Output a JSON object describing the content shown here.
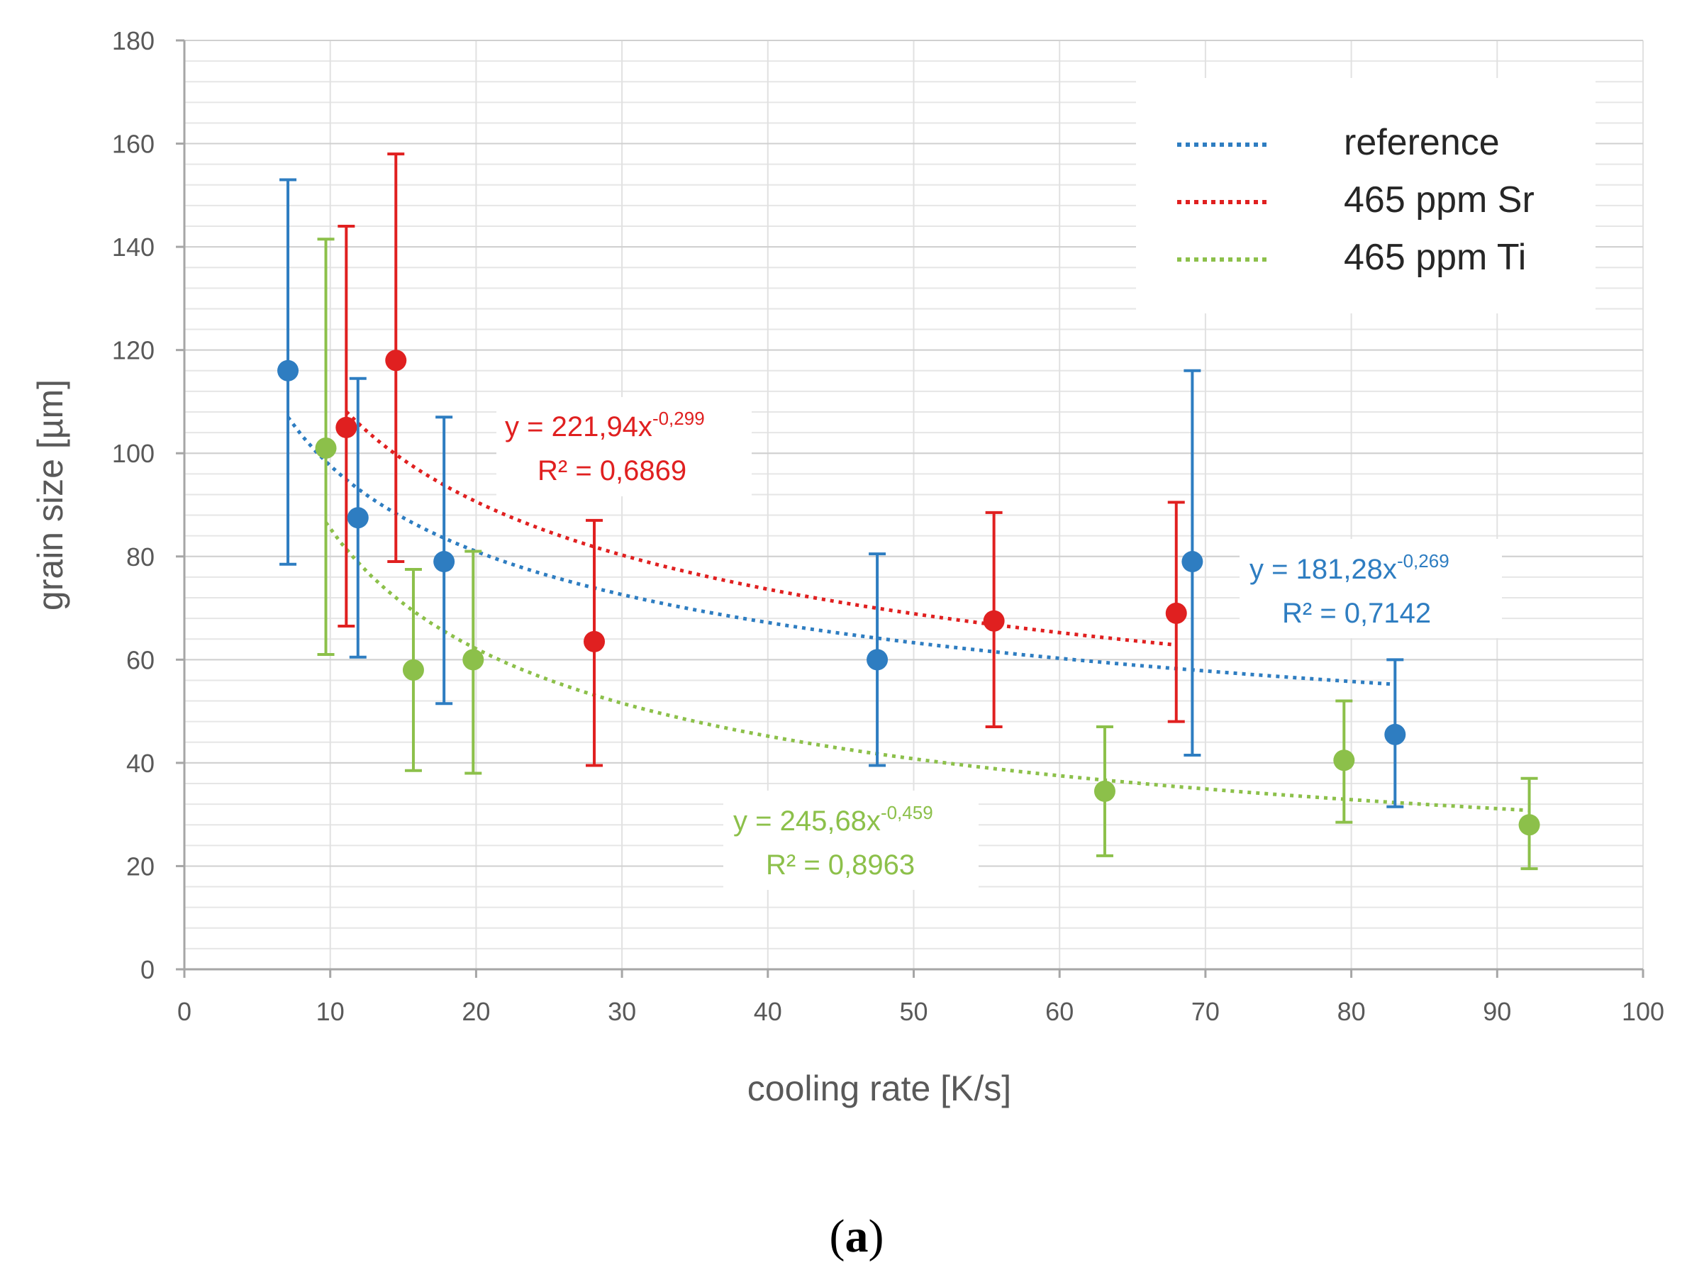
{
  "chart_data": {
    "type": "scatter",
    "xlabel": "cooling rate [K/s]",
    "ylabel": "grain size [µm]",
    "xlim": [
      0,
      100
    ],
    "ylim": [
      0,
      180
    ],
    "x_ticks": [
      "0",
      "10",
      "20",
      "30",
      "40",
      "50",
      "60",
      "70",
      "80",
      "90",
      "100"
    ],
    "y_ticks": [
      "0",
      "20",
      "40",
      "60",
      "80",
      "100",
      "120",
      "140",
      "160",
      "180"
    ],
    "x_tick_values": [
      0,
      10,
      20,
      30,
      40,
      50,
      60,
      70,
      80,
      90,
      100
    ],
    "y_tick_values": [
      0,
      20,
      40,
      60,
      80,
      100,
      120,
      140,
      160,
      180
    ],
    "grid": true,
    "legend_position": "top-right",
    "series": [
      {
        "name": "reference",
        "color": "#2E7DC1",
        "points": [
          {
            "x": 7.1,
            "y": 116,
            "low": 78.5,
            "high": 153
          },
          {
            "x": 11.9,
            "y": 87.5,
            "low": 60.5,
            "high": 114.5
          },
          {
            "x": 17.8,
            "y": 79,
            "low": 51.5,
            "high": 107
          },
          {
            "x": 47.5,
            "y": 60,
            "low": 39.5,
            "high": 80.5
          },
          {
            "x": 69.1,
            "y": 79,
            "low": 41.5,
            "high": 116
          },
          {
            "x": 83,
            "y": 45.5,
            "low": 31.5,
            "high": 60
          }
        ],
        "trend": {
          "a": 181.28,
          "b": -0.269,
          "x_from": 7.1,
          "x_to": 83
        },
        "equation": "y = 181,28x",
        "exponent": "-0,269",
        "r2": "R² = 0,7142"
      },
      {
        "name": "465 ppm Sr",
        "color": "#E02020",
        "points": [
          {
            "x": 11.1,
            "y": 105,
            "low": 66.5,
            "high": 144
          },
          {
            "x": 14.5,
            "y": 118,
            "low": 79,
            "high": 158
          },
          {
            "x": 28.1,
            "y": 63.5,
            "low": 39.5,
            "high": 87
          },
          {
            "x": 55.5,
            "y": 67.5,
            "low": 47,
            "high": 88.5
          },
          {
            "x": 68,
            "y": 69,
            "low": 48,
            "high": 90.5
          }
        ],
        "trend": {
          "a": 221.94,
          "b": -0.299,
          "x_from": 11.1,
          "x_to": 68
        },
        "equation": "y = 221,94x",
        "exponent": "-0,299",
        "r2": "R² = 0,6869"
      },
      {
        "name": "465 ppm Ti",
        "color": "#8CC04A",
        "points": [
          {
            "x": 9.7,
            "y": 101,
            "low": 61,
            "high": 141.5
          },
          {
            "x": 15.7,
            "y": 58,
            "low": 38.5,
            "high": 77.5
          },
          {
            "x": 19.8,
            "y": 60,
            "low": 38,
            "high": 81
          },
          {
            "x": 63.1,
            "y": 34.5,
            "low": 22,
            "high": 47
          },
          {
            "x": 79.5,
            "y": 40.5,
            "low": 28.5,
            "high": 52
          },
          {
            "x": 92.2,
            "y": 28,
            "low": 19.5,
            "high": 37
          }
        ],
        "trend": {
          "a": 245.68,
          "b": -0.459,
          "x_from": 9.7,
          "x_to": 92.2
        },
        "equation": "y = 245,68x",
        "exponent": "-0,459",
        "r2": "R² = 0,8963"
      }
    ]
  },
  "caption": {
    "open": "(",
    "letter": "a",
    "close": ")"
  }
}
